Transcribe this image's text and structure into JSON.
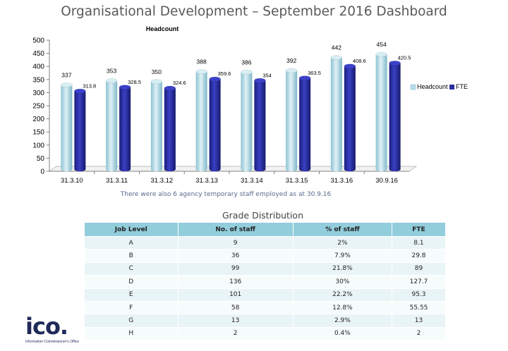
{
  "page": {
    "title": "Organisational Development – September 2016 Dashboard",
    "note": "There were also 6 agency temporary staff employed as at 30.9.16"
  },
  "chart_data": {
    "type": "bar",
    "title": "Headcount",
    "categories": [
      "31.3.10",
      "31.3.11",
      "31.3.12",
      "31.3.13",
      "31.3.14",
      "31.3.15",
      "31.3.16",
      "30.9.16"
    ],
    "series": [
      {
        "name": "Headcount",
        "values": [
          337,
          353,
          350,
          388,
          386,
          392,
          442,
          454
        ],
        "color": "#b7dde8",
        "labels": [
          "337",
          "353",
          "350",
          "388",
          "386",
          "392",
          "442",
          "454"
        ]
      },
      {
        "name": "FTE",
        "values": [
          313.8,
          328.5,
          324.6,
          359.6,
          354,
          363.5,
          408.6,
          420.5
        ],
        "color": "#2b2f9e",
        "labels": [
          "313.8",
          "328.5",
          "324.6",
          "359.6",
          "354",
          "363.5",
          "408.6",
          "420.5"
        ]
      }
    ],
    "yticks": [
      "0",
      "50",
      "100",
      "150",
      "200",
      "250",
      "300",
      "350",
      "400",
      "450",
      "500"
    ],
    "ylim": [
      0,
      500
    ],
    "legend_position": "right",
    "grid": false,
    "style": "3d-cylinder"
  },
  "grade_distribution": {
    "title": "Grade Distribution",
    "columns": [
      "Job Level",
      "No. of staff",
      "% of staff",
      "FTE"
    ],
    "rows": [
      [
        "A",
        "9",
        "2%",
        "8.1"
      ],
      [
        "B",
        "36",
        "7.9%",
        "29.8"
      ],
      [
        "C",
        "99",
        "21.8%",
        "89"
      ],
      [
        "D",
        "136",
        "30%",
        "127.7"
      ],
      [
        "E",
        "101",
        "22.2%",
        "95.3"
      ],
      [
        "F",
        "58",
        "12.8%",
        "55.55"
      ],
      [
        "G",
        "13",
        "2.9%",
        "13"
      ],
      [
        "H",
        "2",
        "0.4%",
        "2"
      ]
    ]
  },
  "logo": {
    "word": "ico.",
    "subtitle": "Information Commissioner's Office",
    "color": "#1f2a59"
  }
}
